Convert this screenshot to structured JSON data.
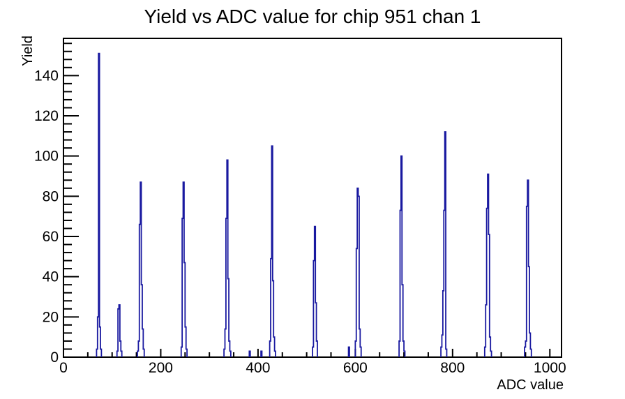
{
  "title": "Yield vs ADC value for chip 951 chan 1",
  "chart_data": {
    "type": "bar",
    "title": "Yield vs ADC value for chip 951 chan 1",
    "xlabel": "ADC value",
    "ylabel": "Yield",
    "xlim": [
      0,
      1024
    ],
    "ylim": [
      0,
      158.5
    ],
    "x_major_ticks": [
      0,
      200,
      400,
      600,
      800,
      1000
    ],
    "x_minor_step": 50,
    "y_major_ticks": [
      0,
      20,
      40,
      60,
      80,
      100,
      120,
      140
    ],
    "y_minor_step": 4,
    "grid": false,
    "legend": false,
    "bin_width_adc": 2,
    "line_color": "#1919a0",
    "axis_color": "#000000",
    "clusters": [
      {
        "start_adc": 68,
        "bin_heights": [
          4,
          20,
          151,
          15,
          4
        ]
      },
      {
        "start_adc": 110,
        "bin_heights": [
          3,
          24,
          26,
          8,
          3
        ]
      },
      {
        "start_adc": 152,
        "bin_heights": [
          3,
          8,
          66,
          87,
          36,
          14,
          4
        ]
      },
      {
        "start_adc": 242,
        "bin_heights": [
          5,
          69,
          87,
          47,
          15,
          4
        ]
      },
      {
        "start_adc": 330,
        "bin_heights": [
          4,
          14,
          69,
          98,
          39,
          8,
          3
        ]
      },
      {
        "start_adc": 382,
        "bin_heights": [
          3
        ]
      },
      {
        "start_adc": 406,
        "bin_heights": [
          3
        ]
      },
      {
        "start_adc": 424,
        "bin_heights": [
          8,
          49,
          105,
          38,
          10,
          3
        ]
      },
      {
        "start_adc": 512,
        "bin_heights": [
          5,
          48,
          65,
          27,
          8
        ]
      },
      {
        "start_adc": 586,
        "bin_heights": [
          5
        ]
      },
      {
        "start_adc": 600,
        "bin_heights": [
          8,
          54,
          84,
          80,
          14,
          5
        ]
      },
      {
        "start_adc": 690,
        "bin_heights": [
          8,
          73,
          100,
          36,
          8,
          3
        ]
      },
      {
        "start_adc": 776,
        "bin_heights": [
          5,
          11,
          33,
          73,
          112,
          4
        ]
      },
      {
        "start_adc": 866,
        "bin_heights": [
          5,
          26,
          74,
          91,
          61,
          10,
          3
        ]
      },
      {
        "start_adc": 948,
        "bin_heights": [
          5,
          8,
          75,
          88,
          45,
          12,
          4
        ]
      }
    ]
  }
}
